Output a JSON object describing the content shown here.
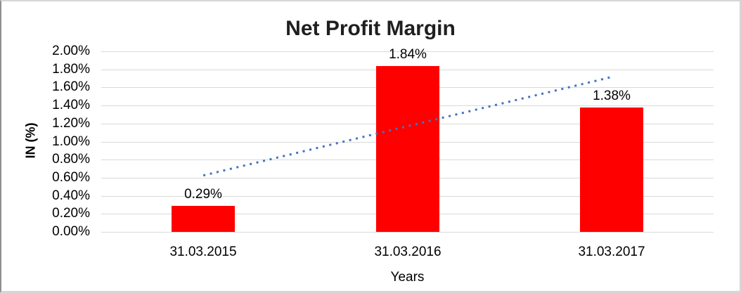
{
  "window": {
    "background": "#ffffff",
    "frame_border_color": "#d6d6d6",
    "frame_left_border_color": "#8f8f8f"
  },
  "chart_data": {
    "type": "bar",
    "title": "Net Profit Margin",
    "xlabel": "Years",
    "ylabel": "IN (%)",
    "categories": [
      "31.03.2015",
      "31.03.2016",
      "31.03.2017"
    ],
    "values": [
      0.29,
      1.84,
      1.38
    ],
    "data_labels": [
      "0.29%",
      "1.84%",
      "1.38%"
    ],
    "ylim": [
      0,
      2.0
    ],
    "ytick_step": 0.2,
    "ytick_labels": [
      "0.00%",
      "0.20%",
      "0.40%",
      "0.60%",
      "0.80%",
      "1.00%",
      "1.20%",
      "1.40%",
      "1.60%",
      "1.80%",
      "2.00%"
    ],
    "grid": true,
    "legend_position": "none",
    "bar_color": "#ff0000",
    "gridline_color": "#d9d9d9",
    "axis_text_color": "#000000",
    "title_color": "#1f1f1f",
    "trendline": {
      "type": "linear",
      "style": "dotted",
      "color": "#4472c4",
      "start_value": 0.625,
      "end_value": 1.715
    }
  }
}
